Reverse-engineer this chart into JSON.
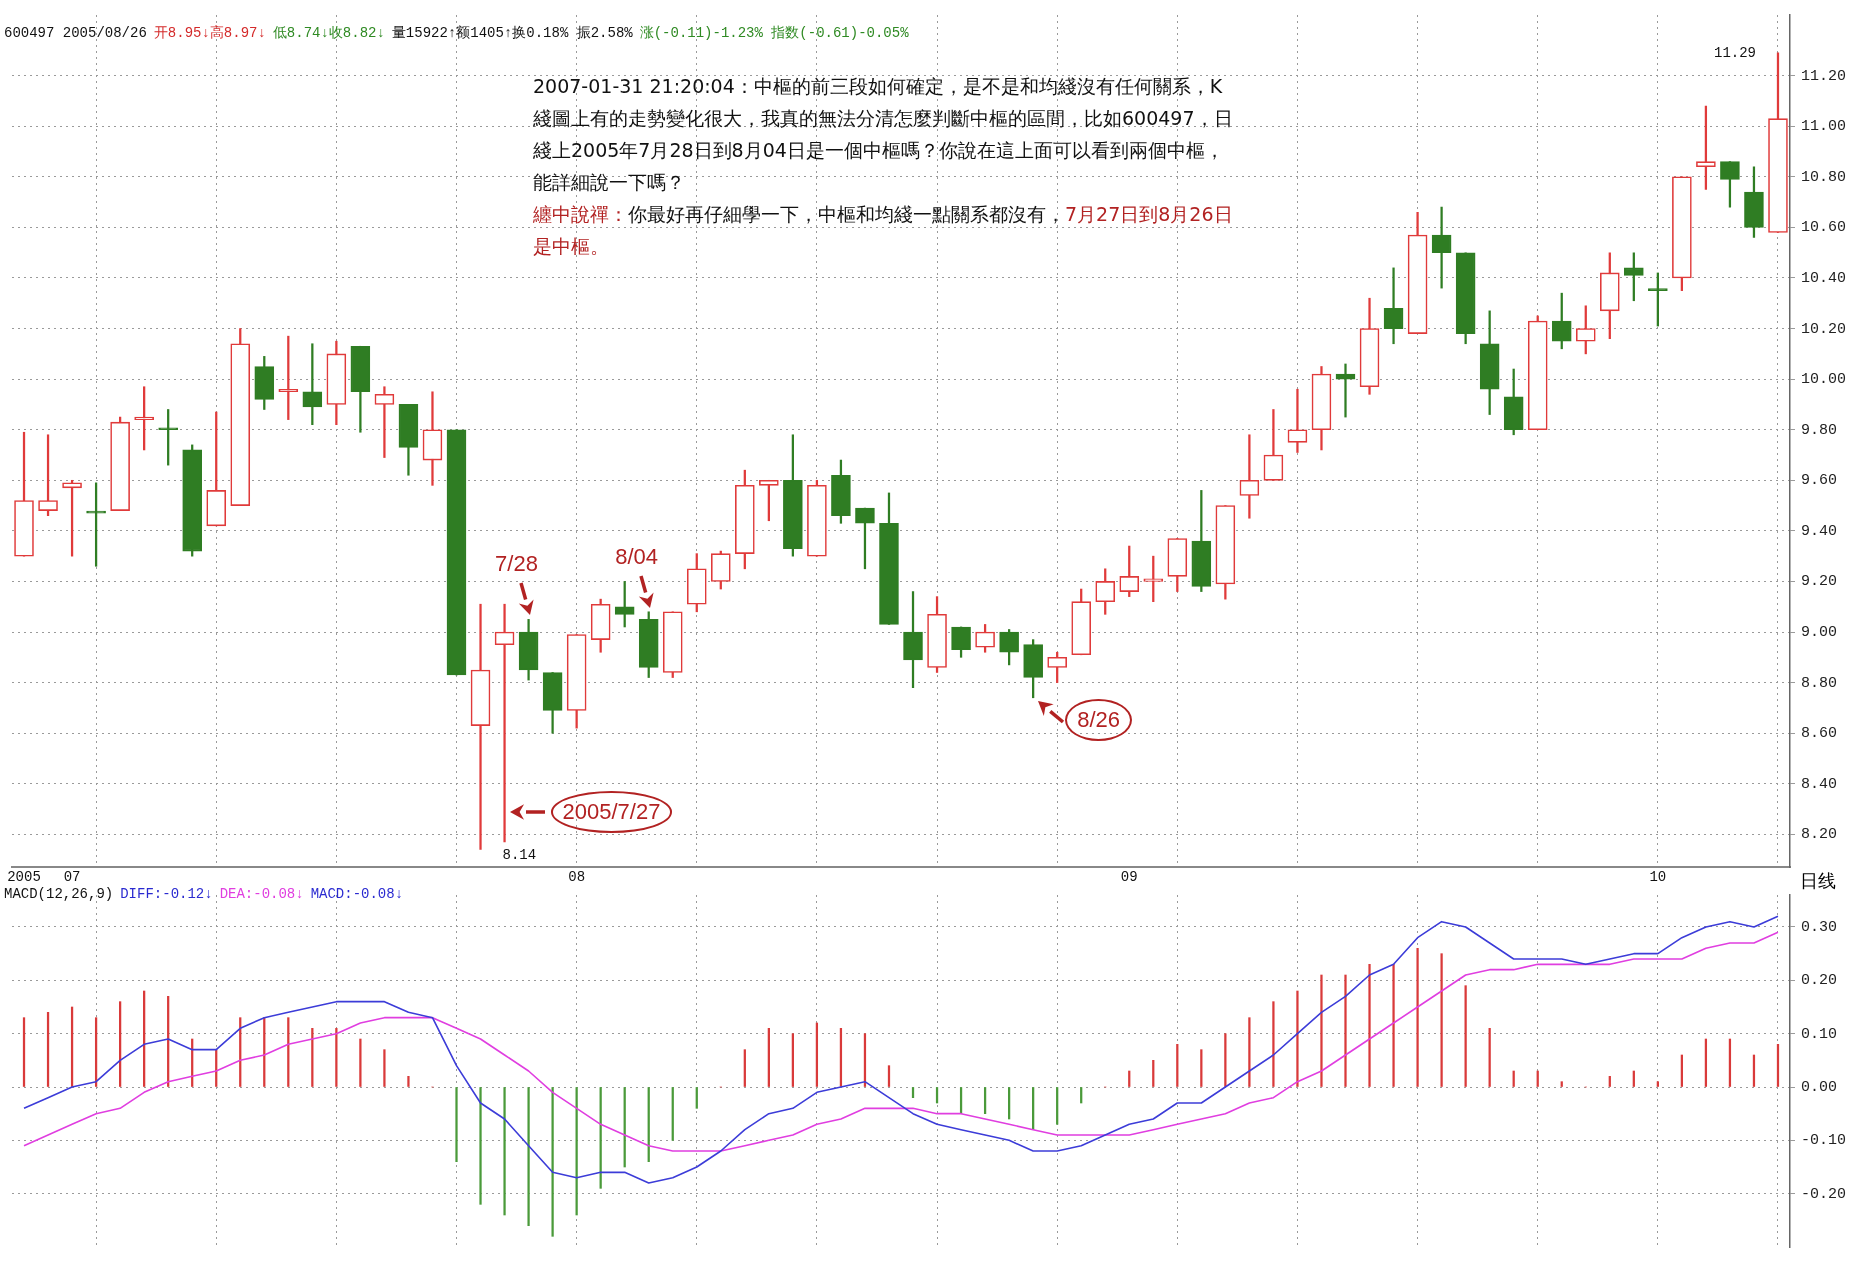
{
  "chart_data": [
    {
      "type": "candlestick",
      "categories": [
        "2005",
        null,
        "07",
        null,
        null,
        null,
        null,
        null,
        null,
        null,
        null,
        null,
        null,
        null,
        null,
        null,
        null,
        null,
        null,
        null,
        null,
        null,
        null,
        "08",
        null,
        null,
        null,
        null,
        null,
        null,
        null,
        null,
        null,
        null,
        null,
        null,
        null,
        null,
        null,
        null,
        null,
        null,
        null,
        null,
        null,
        null,
        "09",
        null,
        null,
        null,
        null,
        null,
        null,
        null,
        null,
        null,
        null,
        null,
        null,
        null,
        null,
        null,
        null,
        null,
        null,
        null,
        null,
        null,
        "10",
        null,
        null,
        null,
        null,
        null
      ],
      "ohlc": [
        [
          9.3,
          9.79,
          9.3,
          9.52
        ],
        [
          9.48,
          9.78,
          9.46,
          9.52
        ],
        [
          9.57,
          9.6,
          9.3,
          9.59
        ],
        [
          9.47,
          9.59,
          9.26,
          9.47
        ],
        [
          9.48,
          9.85,
          9.48,
          9.83
        ],
        [
          9.84,
          9.97,
          9.72,
          9.85
        ],
        [
          9.8,
          9.88,
          9.66,
          9.8
        ],
        [
          9.72,
          9.74,
          9.3,
          9.32
        ],
        [
          9.42,
          9.87,
          9.42,
          9.56
        ],
        [
          9.5,
          10.2,
          9.5,
          10.14
        ],
        [
          10.05,
          10.09,
          9.88,
          9.92
        ],
        [
          9.95,
          10.17,
          9.84,
          9.96
        ],
        [
          9.95,
          10.14,
          9.82,
          9.89
        ],
        [
          9.9,
          10.15,
          9.82,
          10.1
        ],
        [
          10.13,
          10.13,
          9.79,
          9.95
        ],
        [
          9.9,
          9.97,
          9.69,
          9.94
        ],
        [
          9.9,
          9.9,
          9.62,
          9.73
        ],
        [
          9.68,
          9.95,
          9.58,
          9.8
        ],
        [
          9.8,
          9.8,
          8.83,
          8.83
        ],
        [
          8.63,
          9.11,
          8.14,
          8.85
        ],
        [
          8.95,
          9.11,
          8.17,
          9.0
        ],
        [
          9.0,
          9.05,
          8.81,
          8.85
        ],
        [
          8.84,
          8.84,
          8.6,
          8.69
        ],
        [
          8.69,
          8.99,
          8.62,
          8.99
        ],
        [
          8.97,
          9.13,
          8.92,
          9.11
        ],
        [
          9.1,
          9.2,
          9.02,
          9.07
        ],
        [
          9.05,
          9.08,
          8.82,
          8.86
        ],
        [
          8.84,
          9.08,
          8.82,
          9.08
        ],
        [
          9.11,
          9.31,
          9.08,
          9.25
        ],
        [
          9.2,
          9.32,
          9.17,
          9.31
        ],
        [
          9.31,
          9.64,
          9.25,
          9.58
        ],
        [
          9.58,
          9.6,
          9.44,
          9.6
        ],
        [
          9.6,
          9.78,
          9.3,
          9.33
        ],
        [
          9.3,
          9.6,
          9.3,
          9.58
        ],
        [
          9.62,
          9.68,
          9.43,
          9.46
        ],
        [
          9.49,
          9.49,
          9.25,
          9.43
        ],
        [
          9.43,
          9.55,
          9.03,
          9.03
        ],
        [
          9.0,
          9.16,
          8.78,
          8.89
        ],
        [
          8.86,
          9.14,
          8.84,
          9.07
        ],
        [
          9.02,
          9.02,
          8.9,
          8.93
        ],
        [
          8.94,
          9.03,
          8.92,
          9.0
        ],
        [
          9.0,
          9.01,
          8.87,
          8.92
        ],
        [
          8.95,
          8.97,
          8.74,
          8.82
        ],
        [
          8.86,
          8.92,
          8.8,
          8.9
        ],
        [
          8.91,
          9.17,
          8.91,
          9.12
        ],
        [
          9.12,
          9.25,
          9.07,
          9.2
        ],
        [
          9.16,
          9.34,
          9.14,
          9.22
        ],
        [
          9.2,
          9.3,
          9.12,
          9.21
        ],
        [
          9.22,
          9.37,
          9.16,
          9.37
        ],
        [
          9.36,
          9.56,
          9.16,
          9.18
        ],
        [
          9.19,
          9.5,
          9.13,
          9.5
        ],
        [
          9.54,
          9.78,
          9.45,
          9.6
        ],
        [
          9.6,
          9.88,
          9.6,
          9.7
        ],
        [
          9.75,
          9.96,
          9.71,
          9.8
        ],
        [
          9.8,
          10.05,
          9.72,
          10.02
        ],
        [
          10.02,
          10.06,
          9.85,
          10.0
        ],
        [
          9.97,
          10.32,
          9.94,
          10.2
        ],
        [
          10.28,
          10.44,
          10.14,
          10.2
        ],
        [
          10.18,
          10.66,
          10.18,
          10.57
        ],
        [
          10.57,
          10.68,
          10.36,
          10.5
        ],
        [
          10.5,
          10.5,
          10.14,
          10.18
        ],
        [
          10.14,
          10.27,
          9.86,
          9.96
        ],
        [
          9.93,
          10.04,
          9.78,
          9.8
        ],
        [
          9.8,
          10.25,
          9.8,
          10.23
        ],
        [
          10.23,
          10.34,
          10.12,
          10.15
        ],
        [
          10.15,
          10.29,
          10.1,
          10.2
        ],
        [
          10.27,
          10.5,
          10.16,
          10.42
        ],
        [
          10.44,
          10.5,
          10.31,
          10.41
        ],
        [
          10.35,
          10.42,
          10.21,
          10.35
        ],
        [
          10.4,
          10.8,
          10.35,
          10.8
        ],
        [
          10.84,
          11.08,
          10.75,
          10.86
        ],
        [
          10.86,
          10.86,
          10.68,
          10.79
        ],
        [
          10.74,
          10.84,
          10.56,
          10.6
        ],
        [
          10.58,
          11.29,
          10.58,
          11.03
        ]
      ],
      "colors": [
        "#e03a3a",
        "#e03a3a",
        "#e03a3a",
        "#2f7d23",
        "#e03a3a",
        "#e03a3a",
        "#2f7d23",
        "#2f7d23",
        "#e03a3a",
        "#e03a3a",
        "#2f7d23",
        "#e03a3a",
        "#2f7d23",
        "#e03a3a",
        "#2f7d23",
        "#e03a3a",
        "#2f7d23",
        "#e03a3a",
        "#2f7d23",
        "#e03a3a",
        "#e03a3a",
        "#2f7d23",
        "#2f7d23",
        "#e03a3a",
        "#e03a3a",
        "#2f7d23",
        "#2f7d23",
        "#e03a3a",
        "#e03a3a",
        "#e03a3a",
        "#e03a3a",
        "#e03a3a",
        "#2f7d23",
        "#e03a3a",
        "#2f7d23",
        "#2f7d23",
        "#2f7d23",
        "#2f7d23",
        "#e03a3a",
        "#2f7d23",
        "#e03a3a",
        "#2f7d23",
        "#2f7d23",
        "#e03a3a",
        "#e03a3a",
        "#e03a3a",
        "#e03a3a",
        "#e03a3a",
        "#e03a3a",
        "#2f7d23",
        "#e03a3a",
        "#e03a3a",
        "#e03a3a",
        "#e03a3a",
        "#e03a3a",
        "#2f7d23",
        "#e03a3a",
        "#2f7d23",
        "#e03a3a",
        "#2f7d23",
        "#2f7d23",
        "#2f7d23",
        "#2f7d23",
        "#e03a3a",
        "#2f7d23",
        "#e03a3a",
        "#e03a3a",
        "#2f7d23",
        "#2f7d23",
        "#e03a3a",
        "#e03a3a",
        "#2f7d23",
        "#2f7d23",
        "#e03a3a"
      ],
      "ylim": [
        8.07,
        11.44
      ],
      "yticks": [
        {
          "value": 8.2,
          "label": "8.20"
        },
        {
          "value": 8.4,
          "label": "8.40"
        },
        {
          "value": 8.6,
          "label": "8.60"
        },
        {
          "value": 8.8,
          "label": "8.80"
        },
        {
          "value": 9,
          "label": "9.00"
        },
        {
          "value": 9.2,
          "label": "9.20"
        },
        {
          "value": 9.4,
          "label": "9.40"
        },
        {
          "value": 9.6,
          "label": "9.60"
        },
        {
          "value": 9.8,
          "label": "9.80"
        },
        {
          "value": 10,
          "label": "10.00"
        },
        {
          "value": 10.2,
          "label": "10.20"
        },
        {
          "value": 10.4,
          "label": "10.40"
        },
        {
          "value": 10.6,
          "label": "10.60"
        },
        {
          "value": 10.8,
          "label": "10.80"
        },
        {
          "value": 11,
          "label": "11.00"
        },
        {
          "value": 11.2,
          "label": "11.20"
        }
      ],
      "grid": true,
      "annotations": [
        "600497 2005/08/26",
        "开8.95↓高8.97↓",
        "低8.74↓收8.82↓",
        "量15922↑额1405↑换0.18% 振2.58%",
        "涨(-0.11)-1.23% 指数(-0.61)-0.05%",
        "2007-01-31 21:20:04：中樞的前三段如何確定，是不是和均綫沒有任何關系，K綫圖上有的走勢變化很大，我真的無法分清怎麼判斷中樞的區間，比如600497，日綫上2005年7月28日到8月04日是一個中樞嗎？你說在這上面可以看到兩個中樞，能詳細說一下嗎？",
        "纏中說禪：",
        "你最好再仔細學一下，中樞和均綫一點關系都沒有，",
        "7月27日到8月26日是中樞。",
        "7/28",
        "8/04",
        "2005/7/27",
        "8/26",
        "8.14",
        "11.29",
        "日线"
      ]
    },
    {
      "type": "bar",
      "categories": [
        "2005",
        null,
        "07",
        null,
        null,
        null,
        null,
        null,
        null,
        null,
        null,
        null,
        null,
        null,
        null,
        null,
        null,
        null,
        null,
        null,
        null,
        null,
        null,
        "08",
        null,
        null,
        null,
        null,
        null,
        null,
        null,
        null,
        null,
        null,
        null,
        null,
        null,
        null,
        null,
        null,
        null,
        null,
        null,
        null,
        null,
        null,
        "09",
        null,
        null,
        null,
        null,
        null,
        null,
        null,
        null,
        null,
        null,
        null,
        null,
        null,
        null,
        null,
        null,
        null,
        null,
        null,
        null,
        null,
        "10",
        null,
        null,
        null,
        null,
        null
      ],
      "series": [
        {
          "values": [
            0.13,
            0.14,
            0.15,
            0.13,
            0.16,
            0.18,
            0.17,
            0.09,
            0.07,
            0.13,
            0.13,
            0.13,
            0.11,
            0.11,
            0.09,
            0.07,
            0.02,
            0.0,
            -0.14,
            -0.22,
            -0.24,
            -0.26,
            -0.28,
            -0.24,
            -0.19,
            -0.15,
            -0.14,
            -0.1,
            -0.04,
            0.0,
            0.07,
            0.11,
            0.1,
            0.12,
            0.11,
            0.1,
            0.04,
            -0.02,
            -0.03,
            -0.05,
            -0.05,
            -0.06,
            -0.08,
            -0.07,
            -0.03,
            0.0,
            0.03,
            0.05,
            0.08,
            0.07,
            0.1,
            0.13,
            0.16,
            0.18,
            0.21,
            0.21,
            0.23,
            0.23,
            0.26,
            0.25,
            0.19,
            0.11,
            0.03,
            0.03,
            0.01,
            0.0,
            0.02,
            0.03,
            0.01,
            0.06,
            0.09,
            0.09,
            0.06,
            0.08
          ],
          "colors": [
            "#d93a3a",
            "#d93a3a",
            "#d93a3a",
            "#d93a3a",
            "#d93a3a",
            "#d93a3a",
            "#d93a3a",
            "#d93a3a",
            "#d93a3a",
            "#d93a3a",
            "#d93a3a",
            "#d93a3a",
            "#d93a3a",
            "#d93a3a",
            "#d93a3a",
            "#d93a3a",
            "#d93a3a",
            "#d93a3a",
            "#4a9a3a",
            "#4a9a3a",
            "#4a9a3a",
            "#4a9a3a",
            "#4a9a3a",
            "#4a9a3a",
            "#4a9a3a",
            "#4a9a3a",
            "#4a9a3a",
            "#4a9a3a",
            "#4a9a3a",
            "#d93a3a",
            "#d93a3a",
            "#d93a3a",
            "#d93a3a",
            "#d93a3a",
            "#d93a3a",
            "#d93a3a",
            "#d93a3a",
            "#4a9a3a",
            "#4a9a3a",
            "#4a9a3a",
            "#4a9a3a",
            "#4a9a3a",
            "#4a9a3a",
            "#4a9a3a",
            "#4a9a3a",
            "#d93a3a",
            "#d93a3a",
            "#d93a3a",
            "#d93a3a",
            "#d93a3a",
            "#d93a3a",
            "#d93a3a",
            "#d93a3a",
            "#d93a3a",
            "#d93a3a",
            "#d93a3a",
            "#d93a3a",
            "#d93a3a",
            "#d93a3a",
            "#d93a3a",
            "#d93a3a",
            "#d93a3a",
            "#d93a3a",
            "#d93a3a",
            "#d93a3a",
            "#d93a3a",
            "#d93a3a",
            "#d93a3a",
            "#d93a3a",
            "#d93a3a",
            "#d93a3a",
            "#d93a3a",
            "#d93a3a",
            "#d93a3a"
          ]
        },
        {
          "type": "line",
          "color": "#3c3cd8",
          "values": [
            -0.04,
            -0.02,
            0.0,
            0.01,
            0.05,
            0.08,
            0.09,
            0.07,
            0.07,
            0.11,
            0.13,
            0.14,
            0.15,
            0.16,
            0.16,
            0.16,
            0.14,
            0.13,
            0.04,
            -0.03,
            -0.06,
            -0.11,
            -0.16,
            -0.17,
            -0.16,
            -0.16,
            -0.18,
            -0.17,
            -0.15,
            -0.12,
            -0.08,
            -0.05,
            -0.04,
            -0.01,
            0.0,
            0.01,
            -0.02,
            -0.05,
            -0.07,
            -0.08,
            -0.09,
            -0.1,
            -0.12,
            -0.12,
            -0.11,
            -0.09,
            -0.07,
            -0.06,
            -0.03,
            -0.03,
            0.0,
            0.03,
            0.06,
            0.1,
            0.14,
            0.17,
            0.21,
            0.23,
            0.28,
            0.31,
            0.3,
            0.27,
            0.24,
            0.24,
            0.24,
            0.23,
            0.24,
            0.25,
            0.25,
            0.28,
            0.3,
            0.31,
            0.3,
            0.32
          ]
        },
        {
          "type": "line",
          "color": "#e03ee0",
          "values": [
            -0.11,
            -0.09,
            -0.07,
            -0.05,
            -0.04,
            -0.01,
            0.01,
            0.02,
            0.03,
            0.05,
            0.06,
            0.08,
            0.09,
            0.1,
            0.12,
            0.13,
            0.13,
            0.13,
            0.11,
            0.09,
            0.06,
            0.03,
            -0.01,
            -0.04,
            -0.07,
            -0.09,
            -0.11,
            -0.12,
            -0.12,
            -0.12,
            -0.11,
            -0.1,
            -0.09,
            -0.07,
            -0.06,
            -0.04,
            -0.04,
            -0.04,
            -0.05,
            -0.05,
            -0.06,
            -0.07,
            -0.08,
            -0.09,
            -0.09,
            -0.09,
            -0.09,
            -0.08,
            -0.07,
            -0.06,
            -0.05,
            -0.03,
            -0.02,
            0.01,
            0.03,
            0.06,
            0.09,
            0.12,
            0.15,
            0.18,
            0.21,
            0.22,
            0.22,
            0.23,
            0.23,
            0.23,
            0.23,
            0.24,
            0.24,
            0.24,
            0.26,
            0.27,
            0.27,
            0.29
          ]
        }
      ],
      "ylim": [
        -0.3,
        0.36
      ],
      "yticks": [
        {
          "value": -0.2,
          "label": "-0.20"
        },
        {
          "value": -0.1,
          "label": "-0.10"
        },
        {
          "value": 0,
          "label": "0.00"
        },
        {
          "value": 0.1,
          "label": "0.10"
        },
        {
          "value": 0.2,
          "label": "0.20"
        },
        {
          "value": 0.3,
          "label": "0.30"
        }
      ],
      "grid": true,
      "tick_labels": "y",
      "annotations": [
        "MACD(12,26,9)",
        "DIFF:-0.12↓",
        "DEA:-0.08↓",
        "MACD:-0.08↓"
      ]
    }
  ]
}
